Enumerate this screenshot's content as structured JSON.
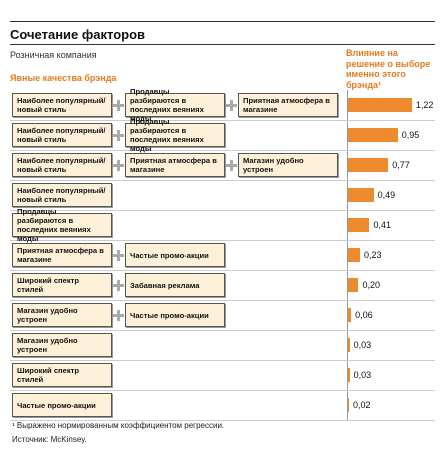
{
  "chart_data": {
    "type": "bar",
    "title": "Сочетание факторов",
    "subtitle": "Розничная компания",
    "category_header": "Явные качества брэнда",
    "value_header": "Влияние на решение о выборе именно этого брэнда¹",
    "categories": [
      [
        "Наиболее популярный/ новый стиль",
        "Продавцы разбираются в последних веяниях моды",
        "Приятная атмосфера в магазине"
      ],
      [
        "Наиболее популярный/ новый стиль",
        "Продавцы разбираются в последних веяниях моды"
      ],
      [
        "Наиболее популярный/ новый стиль",
        "Приятная атмосфера в магазине",
        "Магазин удобно устроен"
      ],
      [
        "Наиболее популярный/ новый стиль"
      ],
      [
        "Продавцы разбираются в последних веяниях моды"
      ],
      [
        "Приятная атмосфера в магазине",
        "Частые промо-акции"
      ],
      [
        "Широкий спектр стилей",
        "Забавная реклама"
      ],
      [
        "Магазин удобно устроен",
        "Частые промо-акции"
      ],
      [
        "Магазин удобно устроен"
      ],
      [
        "Широкий спектр стилей"
      ],
      [
        "Частые промо-акции"
      ]
    ],
    "values": [
      1.22,
      0.95,
      0.77,
      0.49,
      0.41,
      0.23,
      0.2,
      0.06,
      0.03,
      0.03,
      0.02
    ],
    "value_labels": [
      "1,22",
      "0,95",
      "0,77",
      "0,49",
      "0,41",
      "0,23",
      "0,20",
      "0,06",
      "0,03",
      "0,03",
      "0,02"
    ],
    "xlim": [
      0,
      1.3
    ],
    "color": "#ee8a2e",
    "footnote": "¹ Выражено нормированным коэффициентом регрессии.",
    "source": "Источник: McKinsey."
  }
}
